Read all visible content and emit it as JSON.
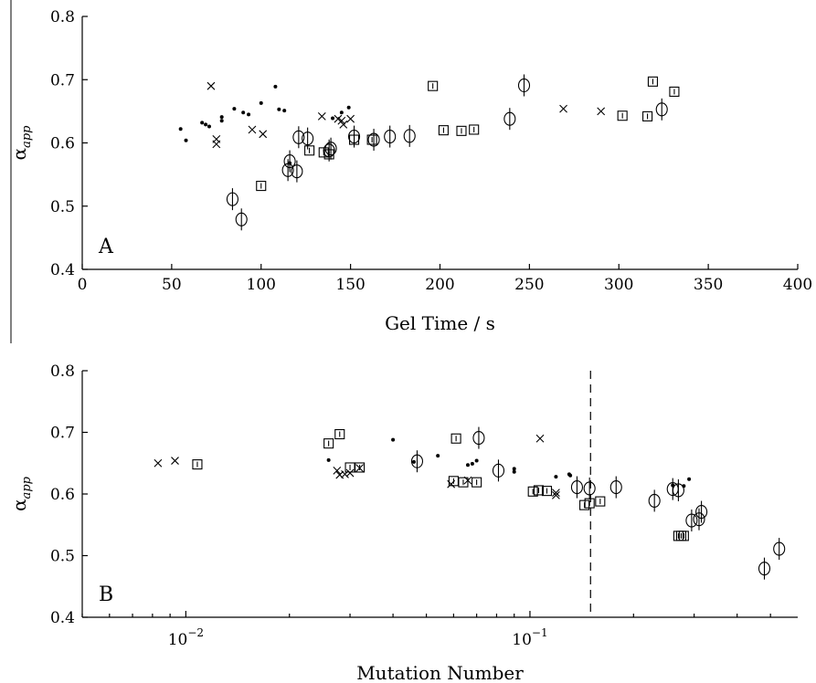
{
  "chart_data": [
    {
      "type": "scatter",
      "panel_label": "A",
      "xlabel": "Gel Time / s",
      "ylabel": "α",
      "ylabel_sub": "app",
      "xlim": [
        0,
        400
      ],
      "ylim": [
        0.4,
        0.8
      ],
      "xticks": [
        0,
        50,
        100,
        150,
        200,
        250,
        300,
        350,
        400
      ],
      "yticks": [
        0.4,
        0.5,
        0.6,
        0.7,
        0.8
      ],
      "grid": false,
      "series": [
        {
          "marker": "dot",
          "points": [
            [
              55,
              0.622
            ],
            [
              58,
              0.604
            ],
            [
              67,
              0.632
            ],
            [
              69,
              0.629
            ],
            [
              71,
              0.626
            ],
            [
              78,
              0.641
            ],
            [
              78,
              0.635
            ],
            [
              85,
              0.654
            ],
            [
              90,
              0.648
            ],
            [
              93,
              0.645
            ],
            [
              100,
              0.663
            ],
            [
              108,
              0.689
            ],
            [
              110,
              0.653
            ],
            [
              113,
              0.651
            ],
            [
              116,
              0.568
            ],
            [
              140,
              0.639
            ],
            [
              145,
              0.648
            ],
            [
              149,
              0.656
            ]
          ]
        },
        {
          "marker": "x",
          "points": [
            [
              72,
              0.69
            ],
            [
              75,
              0.606
            ],
            [
              75,
              0.598
            ],
            [
              95,
              0.621
            ],
            [
              101,
              0.614
            ],
            [
              134,
              0.642
            ],
            [
              143,
              0.638
            ],
            [
              145,
              0.635
            ],
            [
              146,
              0.629
            ],
            [
              150,
              0.638
            ],
            [
              269,
              0.654
            ],
            [
              290,
              0.65
            ]
          ]
        },
        {
          "marker": "square",
          "points": [
            [
              100,
              0.532
            ],
            [
              127,
              0.588
            ],
            [
              135,
              0.585
            ],
            [
              138,
              0.582
            ],
            [
              152,
              0.605
            ],
            [
              162,
              0.605
            ],
            [
              196,
              0.69
            ],
            [
              202,
              0.62
            ],
            [
              212,
              0.619
            ],
            [
              219,
              0.621
            ],
            [
              302,
              0.643
            ],
            [
              316,
              0.642
            ],
            [
              319,
              0.697
            ],
            [
              331,
              0.681
            ]
          ]
        },
        {
          "marker": "circle",
          "points": [
            [
              84,
              0.511
            ],
            [
              89,
              0.479
            ],
            [
              115,
              0.557
            ],
            [
              116,
              0.571
            ],
            [
              120,
              0.555
            ],
            [
              121,
              0.609
            ],
            [
              126,
              0.607
            ],
            [
              138,
              0.588
            ],
            [
              139,
              0.591
            ],
            [
              152,
              0.61
            ],
            [
              163,
              0.605
            ],
            [
              172,
              0.61
            ],
            [
              183,
              0.611
            ],
            [
              239,
              0.638
            ],
            [
              247,
              0.691
            ],
            [
              324,
              0.653
            ]
          ]
        }
      ]
    },
    {
      "type": "scatter",
      "panel_label": "B",
      "xlabel": "Mutation Number",
      "ylabel": "α",
      "ylabel_sub": "app",
      "x_scale": "log",
      "xlim": [
        0.005,
        0.6
      ],
      "ylim": [
        0.4,
        0.8
      ],
      "xticks": [
        {
          "base": "10",
          "exp": "−2",
          "value": 0.01
        },
        {
          "base": "10",
          "exp": "−1",
          "value": 0.1
        }
      ],
      "yticks": [
        0.4,
        0.5,
        0.6,
        0.7,
        0.8
      ],
      "vline": {
        "x": 0.15,
        "style": "dashed"
      },
      "grid": false,
      "series": [
        {
          "marker": "dot",
          "points": [
            [
              0.026,
              0.655
            ],
            [
              0.04,
              0.688
            ],
            [
              0.046,
              0.652
            ],
            [
              0.054,
              0.662
            ],
            [
              0.066,
              0.647
            ],
            [
              0.068,
              0.649
            ],
            [
              0.07,
              0.654
            ],
            [
              0.09,
              0.641
            ],
            [
              0.09,
              0.636
            ],
            [
              0.119,
              0.628
            ],
            [
              0.13,
              0.632
            ],
            [
              0.131,
              0.63
            ],
            [
              0.26,
              0.614
            ],
            [
              0.28,
              0.613
            ],
            [
              0.29,
              0.624
            ]
          ]
        },
        {
          "marker": "x",
          "points": [
            [
              0.0083,
              0.65
            ],
            [
              0.0093,
              0.654
            ],
            [
              0.0275,
              0.638
            ],
            [
              0.028,
              0.631
            ],
            [
              0.029,
              0.632
            ],
            [
              0.03,
              0.634
            ],
            [
              0.032,
              0.642
            ],
            [
              0.059,
              0.616
            ],
            [
              0.066,
              0.622
            ],
            [
              0.107,
              0.69
            ],
            [
              0.119,
              0.602
            ],
            [
              0.119,
              0.598
            ]
          ]
        },
        {
          "marker": "square",
          "points": [
            [
              0.0108,
              0.648
            ],
            [
              0.026,
              0.682
            ],
            [
              0.028,
              0.697
            ],
            [
              0.03,
              0.643
            ],
            [
              0.032,
              0.643
            ],
            [
              0.06,
              0.621
            ],
            [
              0.061,
              0.69
            ],
            [
              0.064,
              0.619
            ],
            [
              0.07,
              0.619
            ],
            [
              0.102,
              0.604
            ],
            [
              0.106,
              0.606
            ],
            [
              0.112,
              0.605
            ],
            [
              0.144,
              0.582
            ],
            [
              0.149,
              0.585
            ],
            [
              0.16,
              0.588
            ],
            [
              0.27,
              0.532
            ],
            [
              0.275,
              0.532
            ],
            [
              0.28,
              0.532
            ]
          ]
        },
        {
          "marker": "circle",
          "points": [
            [
              0.047,
              0.653
            ],
            [
              0.071,
              0.691
            ],
            [
              0.081,
              0.638
            ],
            [
              0.137,
              0.611
            ],
            [
              0.149,
              0.609
            ],
            [
              0.178,
              0.611
            ],
            [
              0.23,
              0.589
            ],
            [
              0.26,
              0.608
            ],
            [
              0.27,
              0.606
            ],
            [
              0.295,
              0.557
            ],
            [
              0.31,
              0.559
            ],
            [
              0.315,
              0.571
            ],
            [
              0.48,
              0.479
            ],
            [
              0.53,
              0.511
            ]
          ]
        }
      ]
    }
  ]
}
